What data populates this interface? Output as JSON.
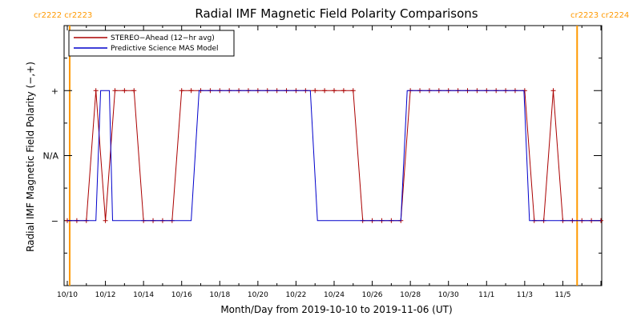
{
  "chart_data": {
    "type": "line",
    "title": "Radial IMF Magnetic Field Polarity Comparisons",
    "xlabel": "Month/Day from 2019-10-10 to 2019-11-06 (UT)",
    "ylabel": "Radial IMF Magnetic Field Polarity (−,+)",
    "x_range": [
      "2019-10-10",
      "2019-11-06"
    ],
    "x_ticks": [
      "10/10",
      "10/12",
      "10/14",
      "10/16",
      "10/18",
      "10/20",
      "10/22",
      "10/24",
      "10/26",
      "10/28",
      "10/30",
      "11/1",
      "11/3",
      "11/5"
    ],
    "y_categories": [
      "−",
      "N/A",
      "+"
    ],
    "y_levels": {
      "minus": -1,
      "na": 0,
      "plus": 1
    },
    "ylim": [
      -2,
      2
    ],
    "grid": false,
    "legend_position": "top-left",
    "rotation_labels": {
      "left": "cr2222 cr2223",
      "right": "cr2223 cr2224",
      "color": "#FF9900"
    },
    "rotation_lines": [
      "2019-10-10T03:00",
      "2019-11-05T18:00"
    ],
    "series": [
      {
        "name": "STEREO−Ahead (12−hr avg)",
        "color": "#AA0000",
        "marker": "+",
        "points": [
          [
            "2019-10-10T00:00",
            -1
          ],
          [
            "2019-10-10T12:00",
            -1
          ],
          [
            "2019-10-11T00:00",
            -1
          ],
          [
            "2019-10-11T12:00",
            1
          ],
          [
            "2019-10-12T00:00",
            -1
          ],
          [
            "2019-10-12T12:00",
            1
          ],
          [
            "2019-10-13T00:00",
            1
          ],
          [
            "2019-10-13T12:00",
            1
          ],
          [
            "2019-10-14T00:00",
            -1
          ],
          [
            "2019-10-14T12:00",
            -1
          ],
          [
            "2019-10-15T00:00",
            -1
          ],
          [
            "2019-10-15T12:00",
            -1
          ],
          [
            "2019-10-16T00:00",
            1
          ],
          [
            "2019-10-16T12:00",
            1
          ],
          [
            "2019-10-17T00:00",
            1
          ],
          [
            "2019-10-17T12:00",
            1
          ],
          [
            "2019-10-18T00:00",
            1
          ],
          [
            "2019-10-18T12:00",
            1
          ],
          [
            "2019-10-19T00:00",
            1
          ],
          [
            "2019-10-19T12:00",
            1
          ],
          [
            "2019-10-20T00:00",
            1
          ],
          [
            "2019-10-20T12:00",
            1
          ],
          [
            "2019-10-21T00:00",
            1
          ],
          [
            "2019-10-21T12:00",
            1
          ],
          [
            "2019-10-22T00:00",
            1
          ],
          [
            "2019-10-22T12:00",
            1
          ],
          [
            "2019-10-23T00:00",
            1
          ],
          [
            "2019-10-23T12:00",
            1
          ],
          [
            "2019-10-24T00:00",
            1
          ],
          [
            "2019-10-24T12:00",
            1
          ],
          [
            "2019-10-25T00:00",
            1
          ],
          [
            "2019-10-25T12:00",
            -1
          ],
          [
            "2019-10-26T00:00",
            -1
          ],
          [
            "2019-10-26T12:00",
            -1
          ],
          [
            "2019-10-27T00:00",
            -1
          ],
          [
            "2019-10-27T12:00",
            -1
          ],
          [
            "2019-10-28T00:00",
            1
          ],
          [
            "2019-10-28T12:00",
            1
          ],
          [
            "2019-10-29T00:00",
            1
          ],
          [
            "2019-10-29T12:00",
            1
          ],
          [
            "2019-10-30T00:00",
            1
          ],
          [
            "2019-10-30T12:00",
            1
          ],
          [
            "2019-10-31T00:00",
            1
          ],
          [
            "2019-10-31T12:00",
            1
          ],
          [
            "2019-11-01T00:00",
            1
          ],
          [
            "2019-11-01T12:00",
            1
          ],
          [
            "2019-11-02T00:00",
            1
          ],
          [
            "2019-11-02T12:00",
            1
          ],
          [
            "2019-11-03T00:00",
            1
          ],
          [
            "2019-11-03T12:00",
            -1
          ],
          [
            "2019-11-04T00:00",
            -1
          ],
          [
            "2019-11-04T12:00",
            1
          ],
          [
            "2019-11-05T00:00",
            -1
          ],
          [
            "2019-11-05T12:00",
            -1
          ],
          [
            "2019-11-06T00:00",
            -1
          ],
          [
            "2019-11-06T12:00",
            -1
          ],
          [
            "2019-11-07T00:00",
            -1
          ]
        ]
      },
      {
        "name": "Predictive Science MAS Model",
        "color": "#0000CC",
        "points": [
          [
            "2019-10-10T00:00",
            -1
          ],
          [
            "2019-10-11T12:00",
            -1
          ],
          [
            "2019-10-11T18:00",
            1
          ],
          [
            "2019-10-12T05:00",
            1
          ],
          [
            "2019-10-12T09:00",
            -1
          ],
          [
            "2019-10-16T12:00",
            -1
          ],
          [
            "2019-10-16T22:00",
            1
          ],
          [
            "2019-10-22T18:00",
            1
          ],
          [
            "2019-10-23T03:00",
            -1
          ],
          [
            "2019-10-27T12:00",
            -1
          ],
          [
            "2019-10-27T20:00",
            1
          ],
          [
            "2019-11-02T23:00",
            1
          ],
          [
            "2019-11-03T06:00",
            -1
          ],
          [
            "2019-11-07T00:00",
            -1
          ]
        ]
      }
    ]
  }
}
